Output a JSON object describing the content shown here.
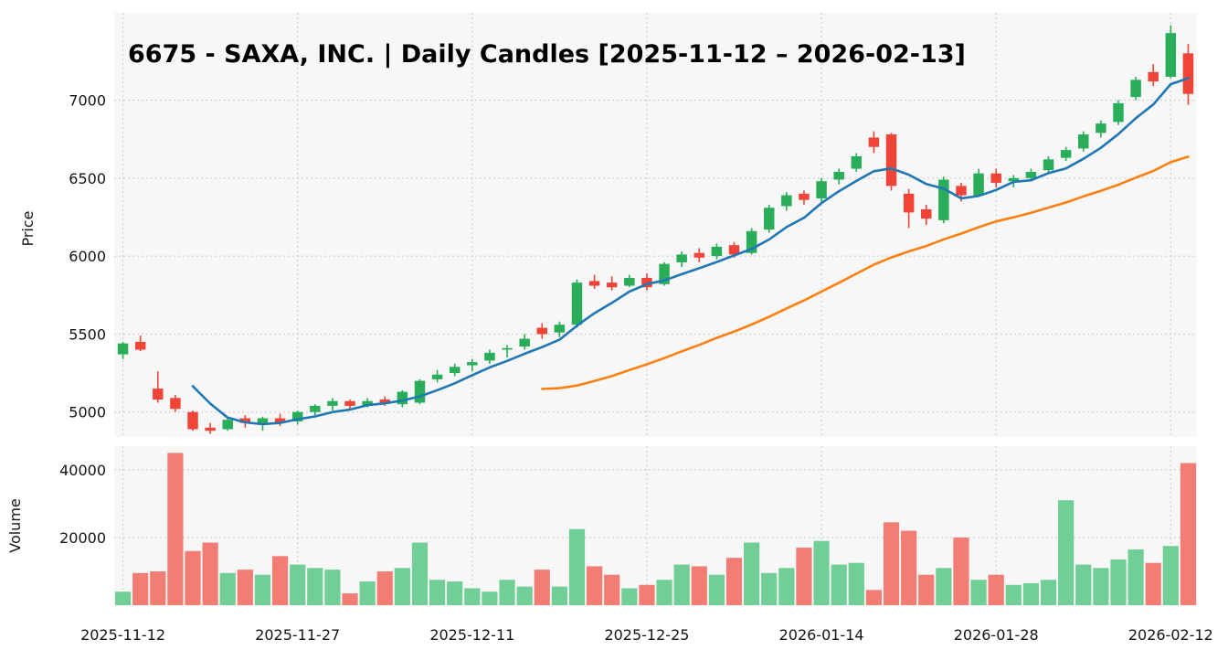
{
  "chart_data": {
    "type": "candlestick",
    "title": "6675 - SAXA, INC. | Daily Candles [2025-11-12 – 2026-02-13]",
    "ylabel_price": "Price",
    "ylabel_volume": "Volume",
    "price_ticks": [
      5000,
      5500,
      6000,
      6500,
      7000
    ],
    "volume_ticks": [
      20000,
      40000
    ],
    "price_range": [
      4840,
      7560
    ],
    "volume_range": [
      0,
      47000
    ],
    "x_ticks": [
      {
        "index": 0,
        "label": "2025-11-12"
      },
      {
        "index": 10,
        "label": "2025-11-27"
      },
      {
        "index": 20,
        "label": "2025-12-11"
      },
      {
        "index": 30,
        "label": "2025-12-25"
      },
      {
        "index": 40,
        "label": "2026-01-14"
      },
      {
        "index": 50,
        "label": "2026-01-28"
      },
      {
        "index": 60,
        "label": "2026-02-12"
      }
    ],
    "overlays": [
      {
        "name": "SMA5",
        "window": 5,
        "color": "#1f77b4"
      },
      {
        "name": "SMA25",
        "window": 25,
        "color": "#ff7f0e"
      }
    ],
    "colors": {
      "up": "#2aad58",
      "down": "#ef4437",
      "vol_up": "#71ce96",
      "vol_down": "#f37d74",
      "panel_bg": "#f7f7f7"
    },
    "candles": {
      "columns": [
        "date",
        "open",
        "high",
        "low",
        "close",
        "volume"
      ],
      "rows": [
        [
          "2025-11-12",
          5370,
          5450,
          5340,
          5440,
          4000
        ],
        [
          "2025-11-13",
          5450,
          5490,
          5390,
          5400,
          9500
        ],
        [
          "2025-11-14",
          5150,
          5260,
          5060,
          5080,
          10000
        ],
        [
          "2025-11-17",
          5090,
          5110,
          5000,
          5020,
          45000
        ],
        [
          "2025-11-18",
          5000,
          5010,
          4880,
          4890,
          16000
        ],
        [
          "2025-11-19",
          4900,
          4930,
          4860,
          4880,
          18500
        ],
        [
          "2025-11-20",
          4890,
          4970,
          4880,
          4950,
          9500
        ],
        [
          "2025-11-21",
          4960,
          4980,
          4900,
          4930,
          10500
        ],
        [
          "2025-11-25",
          4920,
          4970,
          4880,
          4960,
          9000
        ],
        [
          "2025-11-26",
          4960,
          4990,
          4910,
          4930,
          14500
        ],
        [
          "2025-11-27",
          4940,
          5010,
          4920,
          5000,
          12000
        ],
        [
          "2025-11-28",
          5000,
          5050,
          4980,
          5040,
          11000
        ],
        [
          "2025-12-01",
          5040,
          5090,
          5010,
          5070,
          10500
        ],
        [
          "2025-12-02",
          5070,
          5080,
          5020,
          5040,
          3500
        ],
        [
          "2025-12-03",
          5040,
          5090,
          5030,
          5070,
          7000
        ],
        [
          "2025-12-04",
          5080,
          5100,
          5040,
          5060,
          10000
        ],
        [
          "2025-12-05",
          5050,
          5140,
          5030,
          5130,
          11000
        ],
        [
          "2025-12-08",
          5060,
          5210,
          5050,
          5200,
          18500
        ],
        [
          "2025-12-09",
          5210,
          5270,
          5190,
          5240,
          7500
        ],
        [
          "2025-12-10",
          5250,
          5310,
          5230,
          5290,
          7000
        ],
        [
          "2025-12-11",
          5300,
          5340,
          5260,
          5320,
          5000
        ],
        [
          "2025-12-12",
          5330,
          5400,
          5310,
          5380,
          4000
        ],
        [
          "2025-12-15",
          5400,
          5430,
          5350,
          5410,
          7500
        ],
        [
          "2025-12-16",
          5420,
          5500,
          5400,
          5470,
          5500
        ],
        [
          "2025-12-17",
          5540,
          5570,
          5470,
          5500,
          10500
        ],
        [
          "2025-12-18",
          5510,
          5580,
          5480,
          5560,
          5500
        ],
        [
          "2025-12-19",
          5560,
          5850,
          5540,
          5830,
          22500
        ],
        [
          "2025-12-22",
          5840,
          5880,
          5790,
          5810,
          11500
        ],
        [
          "2025-12-23",
          5830,
          5870,
          5780,
          5800,
          9000
        ],
        [
          "2025-12-24",
          5810,
          5880,
          5800,
          5860,
          5000
        ],
        [
          "2025-12-25",
          5860,
          5890,
          5780,
          5800,
          6000
        ],
        [
          "2025-12-26",
          5820,
          5960,
          5810,
          5950,
          7500
        ],
        [
          "2025-12-29",
          5960,
          6030,
          5930,
          6010,
          12000
        ],
        [
          "2025-12-30",
          6020,
          6050,
          5960,
          5990,
          11500
        ],
        [
          "2026-01-05",
          6000,
          6080,
          5980,
          6060,
          9000
        ],
        [
          "2026-01-06",
          6070,
          6090,
          5990,
          6010,
          14000
        ],
        [
          "2026-01-07",
          6020,
          6180,
          6010,
          6160,
          18500
        ],
        [
          "2026-01-08",
          6170,
          6330,
          6150,
          6310,
          9500
        ],
        [
          "2026-01-09",
          6320,
          6410,
          6290,
          6390,
          11000
        ],
        [
          "2026-01-13",
          6400,
          6420,
          6330,
          6360,
          17000
        ],
        [
          "2026-01-14",
          6370,
          6500,
          6340,
          6480,
          19000
        ],
        [
          "2026-01-15",
          6490,
          6560,
          6460,
          6540,
          12000
        ],
        [
          "2026-01-16",
          6560,
          6660,
          6540,
          6640,
          12500
        ],
        [
          "2026-01-19",
          6760,
          6800,
          6660,
          6700,
          4500
        ],
        [
          "2026-01-20",
          6780,
          6790,
          6420,
          6450,
          24500
        ],
        [
          "2026-01-21",
          6400,
          6430,
          6180,
          6280,
          22000
        ],
        [
          "2026-01-22",
          6300,
          6330,
          6200,
          6240,
          9000
        ],
        [
          "2026-01-23",
          6230,
          6510,
          6210,
          6490,
          11000
        ],
        [
          "2026-01-26",
          6450,
          6470,
          6350,
          6390,
          20000
        ],
        [
          "2026-01-27",
          6390,
          6560,
          6380,
          6530,
          7500
        ],
        [
          "2026-01-28",
          6530,
          6560,
          6440,
          6470,
          9000
        ],
        [
          "2026-01-29",
          6480,
          6520,
          6440,
          6500,
          6000
        ],
        [
          "2026-01-30",
          6500,
          6560,
          6480,
          6540,
          6500
        ],
        [
          "2026-02-02",
          6550,
          6640,
          6530,
          6620,
          7500
        ],
        [
          "2026-02-03",
          6630,
          6700,
          6610,
          6680,
          31000
        ],
        [
          "2026-02-04",
          6690,
          6800,
          6670,
          6780,
          12000
        ],
        [
          "2026-02-05",
          6790,
          6870,
          6760,
          6850,
          11000
        ],
        [
          "2026-02-06",
          6860,
          7000,
          6840,
          6980,
          13500
        ],
        [
          "2026-02-09",
          7020,
          7150,
          7000,
          7130,
          16500
        ],
        [
          "2026-02-10",
          7180,
          7230,
          7090,
          7120,
          12500
        ],
        [
          "2026-02-12",
          7150,
          7480,
          7140,
          7430,
          17500
        ],
        [
          "2026-02-13",
          7300,
          7360,
          6970,
          7040,
          42000
        ]
      ]
    }
  }
}
